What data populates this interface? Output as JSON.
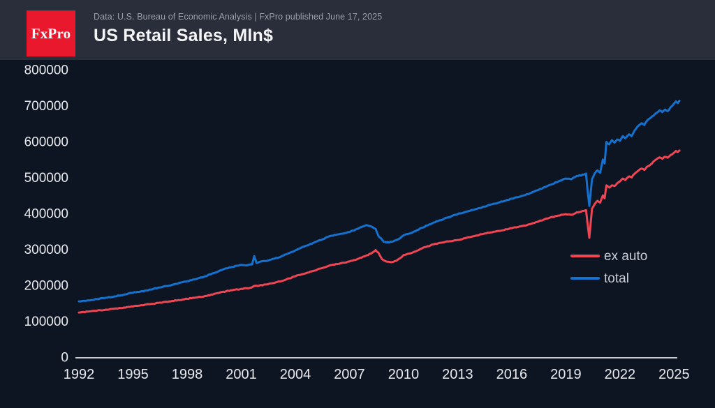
{
  "header": {
    "logo_text": "FxPro",
    "caption": "Data: U.S. Bureau of Economic Analysis | FxPro published June 17, 2025",
    "title": "US Retail Sales, Mln$"
  },
  "colors": {
    "page_background": "#0D1422",
    "header_background": "#2A2D3A",
    "logo_red": "#E9182C",
    "axis_line": "#C9CCD3",
    "tick_label": "#E9EAEE",
    "caption_text": "#9BA0AC",
    "title_text": "#F4F5F7",
    "legend_text": "#C9CDD6",
    "ex_auto_line": "#F04553",
    "total_line": "#1571CE"
  },
  "chart_data": {
    "type": "line",
    "title": "US Retail Sales, Mln$",
    "unit": "Mln$",
    "grid": false,
    "legend_position": "right-center",
    "xlim": [
      1992,
      2025.4
    ],
    "ylim": [
      0,
      800000
    ],
    "x_ticks": [
      1992,
      1995,
      1998,
      2001,
      2004,
      2007,
      2010,
      2013,
      2016,
      2019,
      2022,
      2025
    ],
    "y_ticks": [
      0,
      100000,
      200000,
      300000,
      400000,
      500000,
      600000,
      700000,
      800000
    ],
    "series": [
      {
        "name": "ex auto",
        "color": "#F04553",
        "points": [
          [
            1992.0,
            126000
          ],
          [
            1992.5,
            128500
          ],
          [
            1993.0,
            131000
          ],
          [
            1993.5,
            134000
          ],
          [
            1994.0,
            137000
          ],
          [
            1994.5,
            140000
          ],
          [
            1995.0,
            143000
          ],
          [
            1995.5,
            146500
          ],
          [
            1996.0,
            150000
          ],
          [
            1996.5,
            153500
          ],
          [
            1997.0,
            157000
          ],
          [
            1997.5,
            160500
          ],
          [
            1998.0,
            164000
          ],
          [
            1998.5,
            168000
          ],
          [
            1999.0,
            172000
          ],
          [
            1999.5,
            178000
          ],
          [
            2000.0,
            184000
          ],
          [
            2000.5,
            188000
          ],
          [
            2001.0,
            192000
          ],
          [
            2001.5,
            195000
          ],
          [
            2001.72,
            200000
          ],
          [
            2002.0,
            201000
          ],
          [
            2002.5,
            205000
          ],
          [
            2003.0,
            211000
          ],
          [
            2003.5,
            218000
          ],
          [
            2004.0,
            227000
          ],
          [
            2004.5,
            234000
          ],
          [
            2005.0,
            242000
          ],
          [
            2005.5,
            250000
          ],
          [
            2006.0,
            258000
          ],
          [
            2006.5,
            263000
          ],
          [
            2007.0,
            268000
          ],
          [
            2007.5,
            276000
          ],
          [
            2007.95,
            285000
          ],
          [
            2008.2,
            290000
          ],
          [
            2008.45,
            300000
          ],
          [
            2008.6,
            293000
          ],
          [
            2008.8,
            275000
          ],
          [
            2009.0,
            269000
          ],
          [
            2009.3,
            266000
          ],
          [
            2009.6,
            270000
          ],
          [
            2009.8,
            277000
          ],
          [
            2010.0,
            286000
          ],
          [
            2010.5,
            293000
          ],
          [
            2011.0,
            304000
          ],
          [
            2011.5,
            313000
          ],
          [
            2012.0,
            320000
          ],
          [
            2012.5,
            324000
          ],
          [
            2013.0,
            328000
          ],
          [
            2013.5,
            334000
          ],
          [
            2014.0,
            340000
          ],
          [
            2014.5,
            346000
          ],
          [
            2015.0,
            351000
          ],
          [
            2015.5,
            355000
          ],
          [
            2016.0,
            361000
          ],
          [
            2016.5,
            366000
          ],
          [
            2017.0,
            372000
          ],
          [
            2017.5,
            380000
          ],
          [
            2018.0,
            388000
          ],
          [
            2018.5,
            395000
          ],
          [
            2019.0,
            400000
          ],
          [
            2019.3,
            398000
          ],
          [
            2019.6,
            405000
          ],
          [
            2020.0,
            409000
          ],
          [
            2020.12,
            411000
          ],
          [
            2020.2,
            375000
          ],
          [
            2020.3,
            334000
          ],
          [
            2020.45,
            415000
          ],
          [
            2020.6,
            428000
          ],
          [
            2020.75,
            437000
          ],
          [
            2020.9,
            432000
          ],
          [
            2021.05,
            452000
          ],
          [
            2021.15,
            444000
          ],
          [
            2021.25,
            480000
          ],
          [
            2021.4,
            474000
          ],
          [
            2021.55,
            480000
          ],
          [
            2021.7,
            478000
          ],
          [
            2021.85,
            486000
          ],
          [
            2022.0,
            491000
          ],
          [
            2022.15,
            499000
          ],
          [
            2022.3,
            495000
          ],
          [
            2022.5,
            505000
          ],
          [
            2022.65,
            502000
          ],
          [
            2022.8,
            512000
          ],
          [
            2023.0,
            520000
          ],
          [
            2023.2,
            527000
          ],
          [
            2023.35,
            523000
          ],
          [
            2023.5,
            532000
          ],
          [
            2023.7,
            538000
          ],
          [
            2023.85,
            546000
          ],
          [
            2024.0,
            552000
          ],
          [
            2024.2,
            558000
          ],
          [
            2024.35,
            554000
          ],
          [
            2024.5,
            560000
          ],
          [
            2024.65,
            557000
          ],
          [
            2024.8,
            564000
          ],
          [
            2025.0,
            571000
          ],
          [
            2025.1,
            576000
          ],
          [
            2025.2,
            573000
          ],
          [
            2025.3,
            577000
          ]
        ]
      },
      {
        "name": "total",
        "color": "#1571CE",
        "points": [
          [
            1992.0,
            157000
          ],
          [
            1992.5,
            160000
          ],
          [
            1993.0,
            163500
          ],
          [
            1993.5,
            167000
          ],
          [
            1994.0,
            171000
          ],
          [
            1994.5,
            176000
          ],
          [
            1995.0,
            181000
          ],
          [
            1995.5,
            185500
          ],
          [
            1996.0,
            190000
          ],
          [
            1996.5,
            196000
          ],
          [
            1997.0,
            201000
          ],
          [
            1997.5,
            207000
          ],
          [
            1998.0,
            213000
          ],
          [
            1998.5,
            219000
          ],
          [
            1999.0,
            227000
          ],
          [
            1999.5,
            236000
          ],
          [
            2000.0,
            246000
          ],
          [
            2000.5,
            253000
          ],
          [
            2001.0,
            259000
          ],
          [
            2001.3,
            257000
          ],
          [
            2001.6,
            260000
          ],
          [
            2001.72,
            283000
          ],
          [
            2001.85,
            264000
          ],
          [
            2002.0,
            267000
          ],
          [
            2002.5,
            271000
          ],
          [
            2003.0,
            278000
          ],
          [
            2003.5,
            288000
          ],
          [
            2004.0,
            299000
          ],
          [
            2004.5,
            310000
          ],
          [
            2005.0,
            320000
          ],
          [
            2005.5,
            330000
          ],
          [
            2006.0,
            340000
          ],
          [
            2006.5,
            345000
          ],
          [
            2007.0,
            350000
          ],
          [
            2007.5,
            360000
          ],
          [
            2007.9,
            369000
          ],
          [
            2008.2,
            366000
          ],
          [
            2008.45,
            359000
          ],
          [
            2008.6,
            340000
          ],
          [
            2008.9,
            323000
          ],
          [
            2009.2,
            321000
          ],
          [
            2009.5,
            326000
          ],
          [
            2009.75,
            331000
          ],
          [
            2010.0,
            341000
          ],
          [
            2010.5,
            349000
          ],
          [
            2011.0,
            362000
          ],
          [
            2011.5,
            372000
          ],
          [
            2012.0,
            383000
          ],
          [
            2012.5,
            391000
          ],
          [
            2013.0,
            400000
          ],
          [
            2013.5,
            407000
          ],
          [
            2014.0,
            414000
          ],
          [
            2014.5,
            421000
          ],
          [
            2015.0,
            429000
          ],
          [
            2015.5,
            435000
          ],
          [
            2016.0,
            443000
          ],
          [
            2016.5,
            450000
          ],
          [
            2017.0,
            458000
          ],
          [
            2017.5,
            468000
          ],
          [
            2018.0,
            479000
          ],
          [
            2018.5,
            489000
          ],
          [
            2019.0,
            499000
          ],
          [
            2019.3,
            497000
          ],
          [
            2019.6,
            506000
          ],
          [
            2020.0,
            510000
          ],
          [
            2020.12,
            513000
          ],
          [
            2020.2,
            468000
          ],
          [
            2020.3,
            423000
          ],
          [
            2020.45,
            497000
          ],
          [
            2020.6,
            513000
          ],
          [
            2020.75,
            522000
          ],
          [
            2020.9,
            515000
          ],
          [
            2021.05,
            552000
          ],
          [
            2021.15,
            541000
          ],
          [
            2021.25,
            601000
          ],
          [
            2021.4,
            594000
          ],
          [
            2021.55,
            606000
          ],
          [
            2021.7,
            599000
          ],
          [
            2021.85,
            608000
          ],
          [
            2022.0,
            604000
          ],
          [
            2022.15,
            617000
          ],
          [
            2022.3,
            611000
          ],
          [
            2022.5,
            622000
          ],
          [
            2022.65,
            617000
          ],
          [
            2022.8,
            632000
          ],
          [
            2023.0,
            645000
          ],
          [
            2023.2,
            653000
          ],
          [
            2023.35,
            648000
          ],
          [
            2023.5,
            660000
          ],
          [
            2023.7,
            668000
          ],
          [
            2023.85,
            674000
          ],
          [
            2024.0,
            681000
          ],
          [
            2024.2,
            689000
          ],
          [
            2024.35,
            684000
          ],
          [
            2024.5,
            691000
          ],
          [
            2024.65,
            687000
          ],
          [
            2024.8,
            697000
          ],
          [
            2025.0,
            708000
          ],
          [
            2025.1,
            714000
          ],
          [
            2025.2,
            709000
          ],
          [
            2025.3,
            716000
          ]
        ]
      }
    ]
  }
}
